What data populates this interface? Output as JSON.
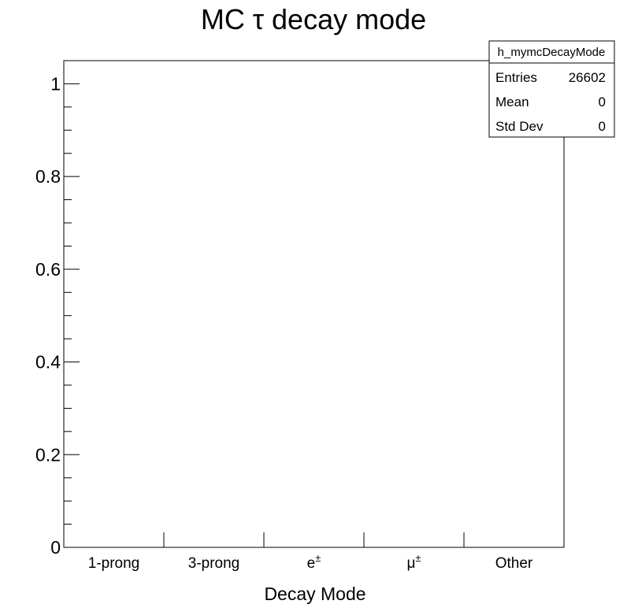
{
  "chart_data": {
    "type": "bar",
    "title": "MC τ decay mode",
    "xlabel": "Decay Mode",
    "ylabel": "",
    "categories": [
      "1-prong",
      "3-prong",
      "e±",
      "μ±",
      "Other"
    ],
    "category_labels": [
      {
        "base": "1-prong",
        "sup": ""
      },
      {
        "base": "3-prong",
        "sup": ""
      },
      {
        "base": "e",
        "sup": "±"
      },
      {
        "base": "μ",
        "sup": "±"
      },
      {
        "base": "Other",
        "sup": ""
      }
    ],
    "values": [
      0,
      0,
      0,
      0,
      0
    ],
    "ylim": [
      0,
      1.05
    ],
    "yticks": [
      0,
      0.2,
      0.4,
      0.6,
      0.8,
      1
    ],
    "ytick_labels": [
      "0",
      "0.2",
      "0.4",
      "0.6",
      "0.8",
      "1"
    ],
    "y_minor_step": 0.05,
    "grid": false,
    "legend": "none",
    "stats_box": {
      "name": "h_mymcDecayMode",
      "placement": "top-right",
      "rows": [
        {
          "label": "Entries",
          "value": "26602"
        },
        {
          "label": "Mean",
          "value": "0"
        },
        {
          "label": "Std Dev",
          "value": "0"
        }
      ]
    }
  }
}
